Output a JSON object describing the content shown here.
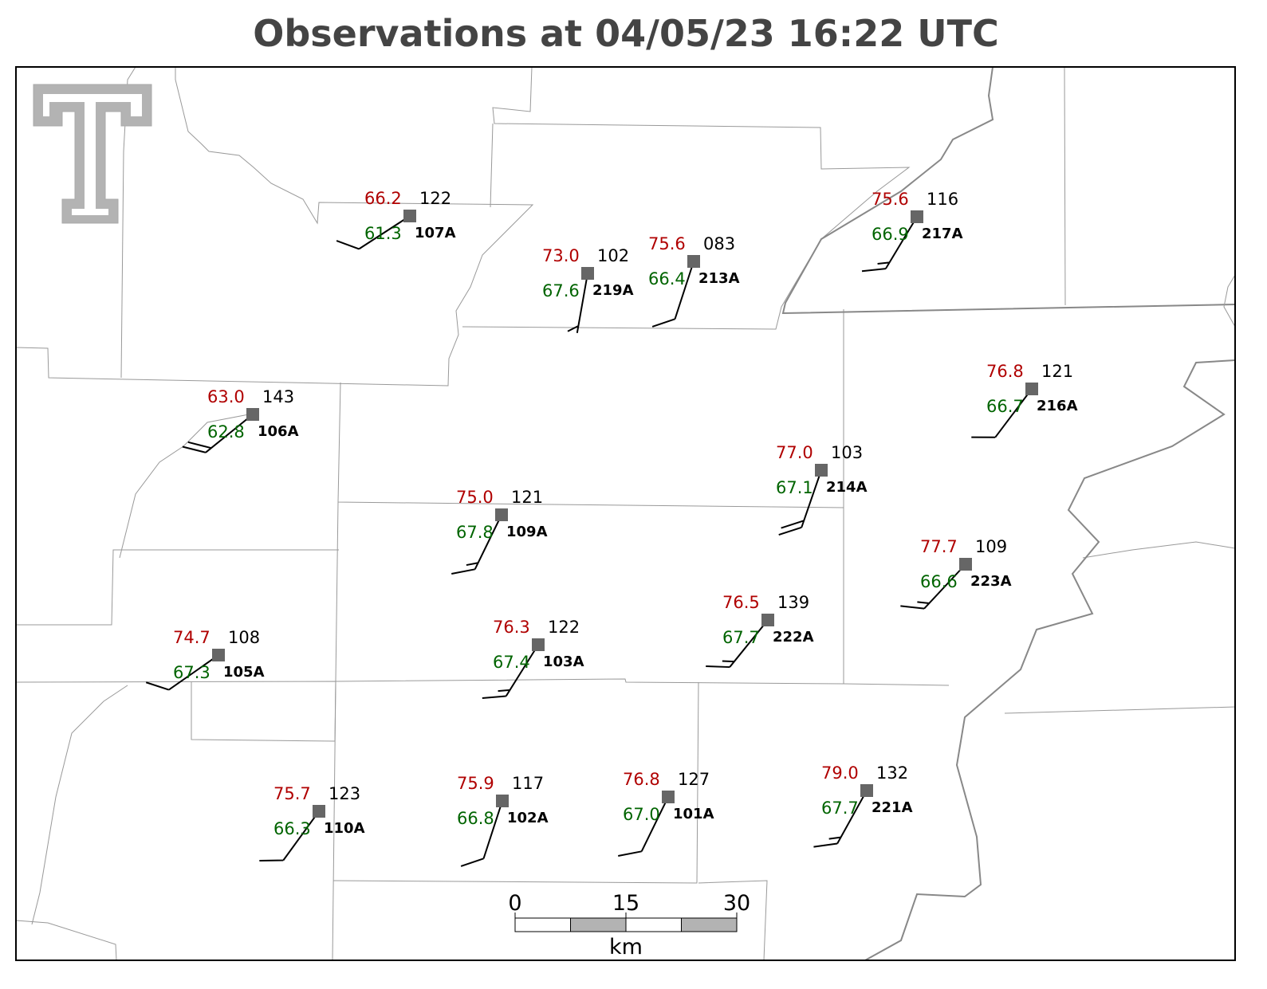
{
  "title": "Observations at 04/05/23 16:22 UTC",
  "stations": [
    {
      "id": "107A",
      "temperature": 66.2,
      "dewpoint": 61.3,
      "pressure": "122",
      "wind_dir": 237,
      "wind_speed": 10
    },
    {
      "id": "219A",
      "temperature": 73.0,
      "dewpoint": 67.6,
      "pressure": "102",
      "wind_dir": 190,
      "wind_speed": 5
    },
    {
      "id": "213A",
      "temperature": 75.6,
      "dewpoint": 66.4,
      "pressure": "083",
      "wind_dir": 198,
      "wind_speed": 10
    },
    {
      "id": "217A",
      "temperature": 75.6,
      "dewpoint": 66.9,
      "pressure": "116",
      "wind_dir": 211,
      "wind_speed": 15
    },
    {
      "id": "106A",
      "temperature": 63.0,
      "dewpoint": 62.8,
      "pressure": "143",
      "wind_dir": 231,
      "wind_speed": 20
    },
    {
      "id": "216A",
      "temperature": 76.8,
      "dewpoint": 66.7,
      "pressure": "121",
      "wind_dir": 217,
      "wind_speed": 10
    },
    {
      "id": "214A",
      "temperature": 77.0,
      "dewpoint": 67.1,
      "pressure": "103",
      "wind_dir": 199,
      "wind_speed": 20
    },
    {
      "id": "109A",
      "temperature": 75.0,
      "dewpoint": 67.8,
      "pressure": "121",
      "wind_dir": 206,
      "wind_speed": 15
    },
    {
      "id": "223A",
      "temperature": 77.7,
      "dewpoint": 66.6,
      "pressure": "109",
      "wind_dir": 223,
      "wind_speed": 15
    },
    {
      "id": "222A",
      "temperature": 76.5,
      "dewpoint": 67.7,
      "pressure": "139",
      "wind_dir": 219,
      "wind_speed": 15
    },
    {
      "id": "105A",
      "temperature": 74.7,
      "dewpoint": 67.3,
      "pressure": "108",
      "wind_dir": 235,
      "wind_speed": 10
    },
    {
      "id": "103A",
      "temperature": 76.3,
      "dewpoint": 67.4,
      "pressure": "122",
      "wind_dir": 212,
      "wind_speed": 15
    },
    {
      "id": "110A",
      "temperature": 75.7,
      "dewpoint": 66.3,
      "pressure": "123",
      "wind_dir": 216,
      "wind_speed": 10
    },
    {
      "id": "102A",
      "temperature": 75.9,
      "dewpoint": 66.8,
      "pressure": "117",
      "wind_dir": 198,
      "wind_speed": 10
    },
    {
      "id": "101A",
      "temperature": 76.8,
      "dewpoint": 67.0,
      "pressure": "127",
      "wind_dir": 206,
      "wind_speed": 10
    },
    {
      "id": "221A",
      "temperature": 79.0,
      "dewpoint": 67.7,
      "pressure": "132",
      "wind_dir": 209,
      "wind_speed": 15
    }
  ],
  "scale_bar": {
    "ticks": [
      0,
      15,
      30
    ],
    "unit": "km"
  }
}
